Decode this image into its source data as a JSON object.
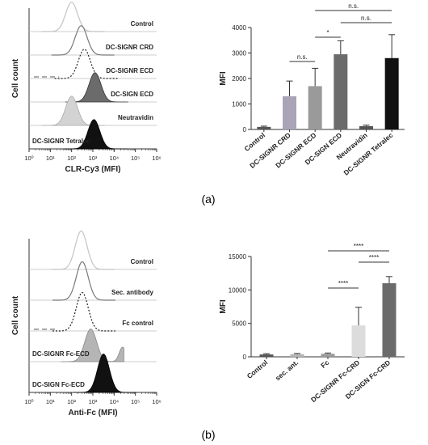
{
  "panel_labels": {
    "a": "(a)",
    "b": "(b)"
  },
  "colors": {
    "control": "#555555",
    "light_gray": "#d3d3d3",
    "mid_gray": "#b5b5b5",
    "lavender": "#a9a4b6",
    "dark_gray": "#6b6b6b",
    "black": "#111111"
  },
  "chart_data": [
    {
      "id": "a-histogram",
      "type": "area",
      "xlabel": "CLR-Cy3 (MFI)",
      "ylabel": "Cell count",
      "xscale": "log",
      "xlim": [
        1,
        1000000
      ],
      "xticks": [
        "10⁰",
        "10¹",
        "10²",
        "10³",
        "10⁴",
        "10⁵",
        "10⁶"
      ],
      "rows": [
        {
          "label": "Control",
          "style": "outline-light",
          "peak_log10": 2.0
        },
        {
          "label": "DC-SIGNR CRD",
          "style": "outline",
          "peak_log10": 2.45
        },
        {
          "label": "DC-SIGNR ECD",
          "style": "dashed-dotted",
          "peak_log10": 2.6
        },
        {
          "label": "DC-SIGN ECD",
          "style": "filled-dark",
          "peak_log10": 3.1
        },
        {
          "label": "Neutravidin",
          "style": "filled-light",
          "peak_log10": 2.0
        },
        {
          "label": "DC-SIGNR Tetralec",
          "style": "filled-black",
          "peak_log10": 3.05
        }
      ]
    },
    {
      "id": "a-bar",
      "type": "bar",
      "ylabel": "MFI",
      "ylim": [
        0,
        4000
      ],
      "yticks": [
        0,
        1000,
        2000,
        3000,
        4000
      ],
      "categories": [
        "Control",
        "DC-SIGNR CRD",
        "DC-SIGNR ECD",
        "DC-SIGN ECD",
        "Neutravidin",
        "DC-SIGNR Tetralec"
      ],
      "values": [
        100,
        1300,
        1700,
        2950,
        130,
        2800
      ],
      "errors": [
        30,
        600,
        700,
        530,
        40,
        920
      ],
      "bar_colors": [
        "#555555",
        "#a9a4b6",
        "#9a9a9a",
        "#6b6b6b",
        "#555555",
        "#111111"
      ],
      "significance": [
        {
          "from": 1,
          "to": 2,
          "label": "n.s."
        },
        {
          "from": 2,
          "to": 3,
          "label": "*"
        },
        {
          "from": 3,
          "to": 5,
          "label": "n.s."
        },
        {
          "from": 2,
          "to": 5,
          "label": "n.s."
        }
      ]
    },
    {
      "id": "b-histogram",
      "type": "area",
      "xlabel": "Anti-Fc (MFI)",
      "ylabel": "Cell count",
      "xscale": "log",
      "xlim": [
        1,
        1000000
      ],
      "xticks": [
        "10⁰",
        "10¹",
        "10²",
        "10³",
        "10⁴",
        "10⁵",
        "10⁶"
      ],
      "rows": [
        {
          "label": "Control",
          "style": "outline-light",
          "peak_log10": 2.45
        },
        {
          "label": "Sec. antibody",
          "style": "outline",
          "peak_log10": 2.5
        },
        {
          "label": "Fc control",
          "style": "dashed-dotted",
          "peak_log10": 2.5
        },
        {
          "label": "DC-SIGNR Fc-ECD",
          "style": "filled-light-bimodal",
          "peak_log10": 2.9
        },
        {
          "label": "DC-SIGN Fc-ECD",
          "style": "filled-black",
          "peak_log10": 3.5
        }
      ]
    },
    {
      "id": "b-bar",
      "type": "bar",
      "ylabel": "MFI",
      "ylim": [
        0,
        15000
      ],
      "yticks": [
        0,
        5000,
        10000,
        15000
      ],
      "categories": [
        "Control",
        "sec. ant.",
        "Fc",
        "DC-SIGNR Fc-CRD",
        "DC-SIGN Fc-CRD"
      ],
      "values": [
        350,
        400,
        450,
        4700,
        11000
      ],
      "errors": [
        120,
        100,
        120,
        2700,
        1000
      ],
      "bar_colors": [
        "#555555",
        "#b5b5b5",
        "#9a9a9a",
        "#dcdcdc",
        "#6b6b6b"
      ],
      "significance": [
        {
          "from": 2,
          "to": 3,
          "label": "****"
        },
        {
          "from": 3,
          "to": 4,
          "label": "****"
        },
        {
          "from": 2,
          "to": 4,
          "label": "****"
        }
      ]
    }
  ]
}
